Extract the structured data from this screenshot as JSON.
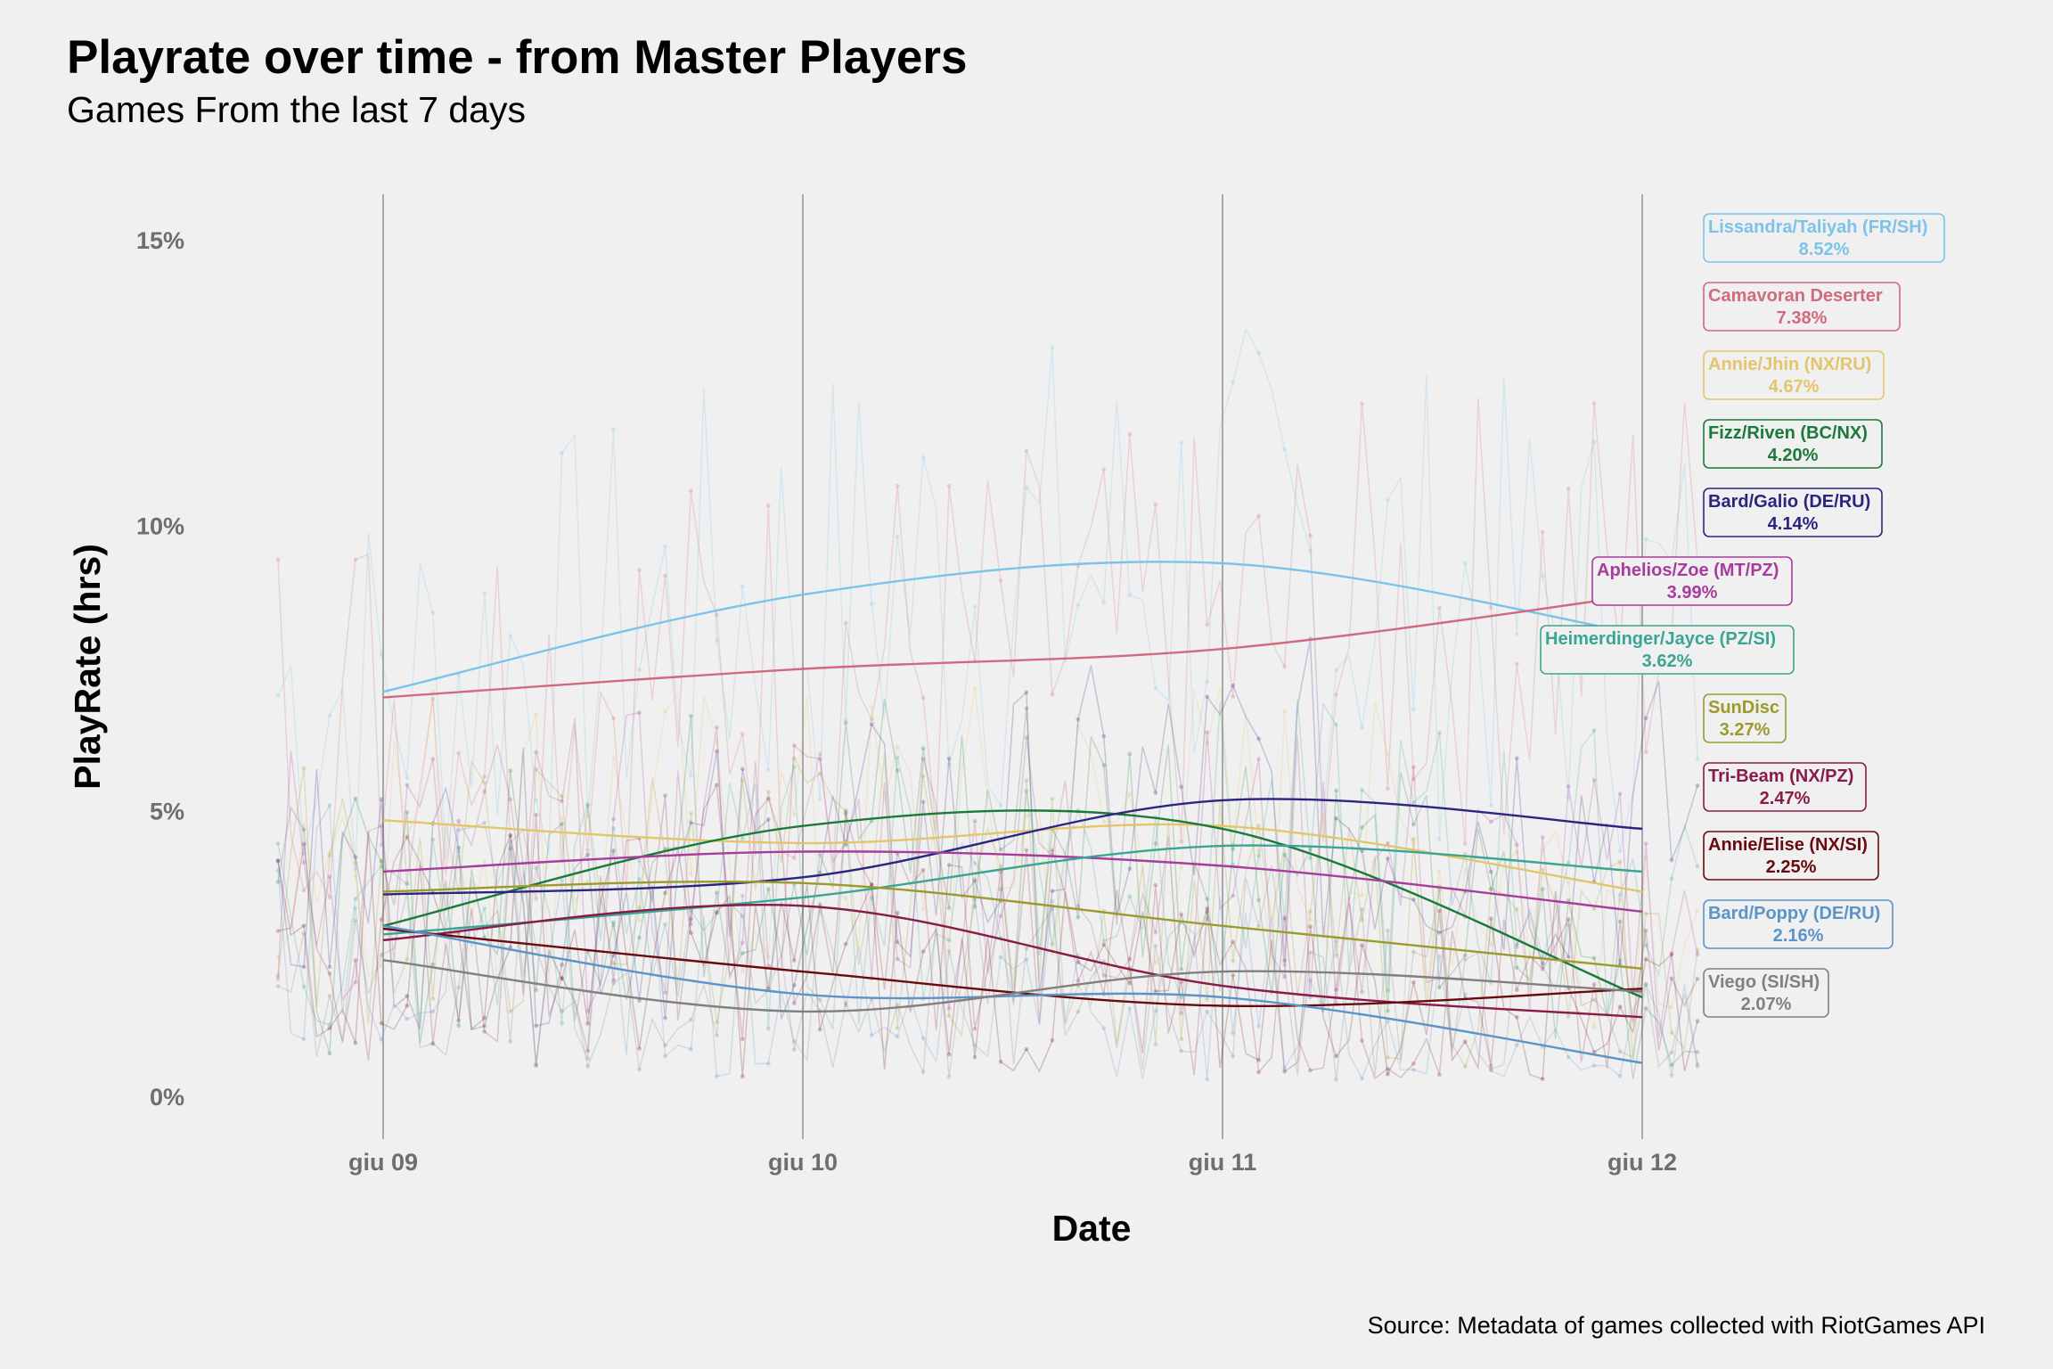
{
  "chart_data": {
    "type": "line",
    "title": "Playrate over time - from Master Players",
    "subtitle": "Games From the last 7 days",
    "xlabel": "Date",
    "ylabel": "PlayRate (hrs)",
    "caption": "Source: Metadata of games collected with RiotGames API",
    "x_ticks": [
      "giu 09",
      "giu 10",
      "giu 11",
      "giu 12"
    ],
    "y_ticks": [
      "0%",
      "5%",
      "10%",
      "15%"
    ],
    "ylim": [
      0,
      15
    ],
    "grid": "vertical",
    "legend": "direct-labels-right",
    "series": [
      {
        "name": "Lissandra/Taliyah (FR/SH)",
        "label_value": "8.52%",
        "color": "#7cc3ea",
        "trend_x": [
          "giu 09",
          "giu 10",
          "giu 11",
          "giu 12"
        ],
        "trend": [
          7.1,
          8.8,
          9.35,
          8.1
        ]
      },
      {
        "name": "Camavoran Deserter",
        "label_value": "7.38%",
        "color": "#d06a7e",
        "trend_x": [
          "giu 09",
          "giu 10",
          "giu 11",
          "giu 12"
        ],
        "trend": [
          7.0,
          7.5,
          7.85,
          8.8
        ]
      },
      {
        "name": "Annie/Jhin (NX/RU)",
        "label_value": "4.67%",
        "color": "#e3c56a",
        "trend_x": [
          "giu 09",
          "giu 10",
          "giu 11",
          "giu 12"
        ],
        "trend": [
          4.85,
          4.45,
          4.75,
          3.6
        ]
      },
      {
        "name": "Fizz/Riven (BC/NX)",
        "label_value": "4.20%",
        "color": "#1a7a3a",
        "trend_x": [
          "giu 09",
          "giu 10",
          "giu 11",
          "giu 12"
        ],
        "trend": [
          3.0,
          4.75,
          4.7,
          1.75
        ]
      },
      {
        "name": "Bard/Galio (DE/RU)",
        "label_value": "4.14%",
        "color": "#2a2580",
        "trend_x": [
          "giu 09",
          "giu 10",
          "giu 11",
          "giu 12"
        ],
        "trend": [
          3.55,
          3.85,
          5.2,
          4.7
        ]
      },
      {
        "name": "Aphelios/Zoe (MT/PZ)",
        "label_value": "3.99%",
        "color": "#a83c9c",
        "trend_x": [
          "giu 09",
          "giu 10",
          "giu 11",
          "giu 12"
        ],
        "trend": [
          3.95,
          4.3,
          4.05,
          3.25
        ]
      },
      {
        "name": "Heimerdinger/Jayce (PZ/SI)",
        "label_value": "3.62%",
        "color": "#3aa592",
        "trend_x": [
          "giu 09",
          "giu 10",
          "giu 11",
          "giu 12"
        ],
        "trend": [
          2.85,
          3.5,
          4.4,
          3.95
        ]
      },
      {
        "name": "SunDisc",
        "label_value": "3.27%",
        "color": "#9c9a2c",
        "trend_x": [
          "giu 09",
          "giu 10",
          "giu 11",
          "giu 12"
        ],
        "trend": [
          3.6,
          3.75,
          3.0,
          2.25
        ]
      },
      {
        "name": "Tri-Beam (NX/PZ)",
        "label_value": "2.47%",
        "color": "#8a1a4a",
        "trend_x": [
          "giu 09",
          "giu 10",
          "giu 11",
          "giu 12"
        ],
        "trend": [
          2.75,
          3.35,
          1.95,
          1.4
        ]
      },
      {
        "name": "Annie/Elise (NX/SI)",
        "label_value": "2.25%",
        "color": "#6a0a10",
        "trend_x": [
          "giu 09",
          "giu 10",
          "giu 11",
          "giu 12"
        ],
        "trend": [
          2.95,
          2.2,
          1.6,
          1.9
        ]
      },
      {
        "name": "Bard/Poppy (DE/RU)",
        "label_value": "2.16%",
        "color": "#5b94c8",
        "trend_x": [
          "giu 09",
          "giu 10",
          "giu 11",
          "giu 12"
        ],
        "trend": [
          3.0,
          1.8,
          1.75,
          0.6
        ]
      },
      {
        "name": "Viego (SI/SH)",
        "label_value": "2.07%",
        "color": "#808080",
        "trend_x": [
          "giu 09",
          "giu 10",
          "giu 11",
          "giu 12"
        ],
        "trend": [
          2.4,
          1.5,
          2.2,
          1.85
        ]
      }
    ]
  }
}
